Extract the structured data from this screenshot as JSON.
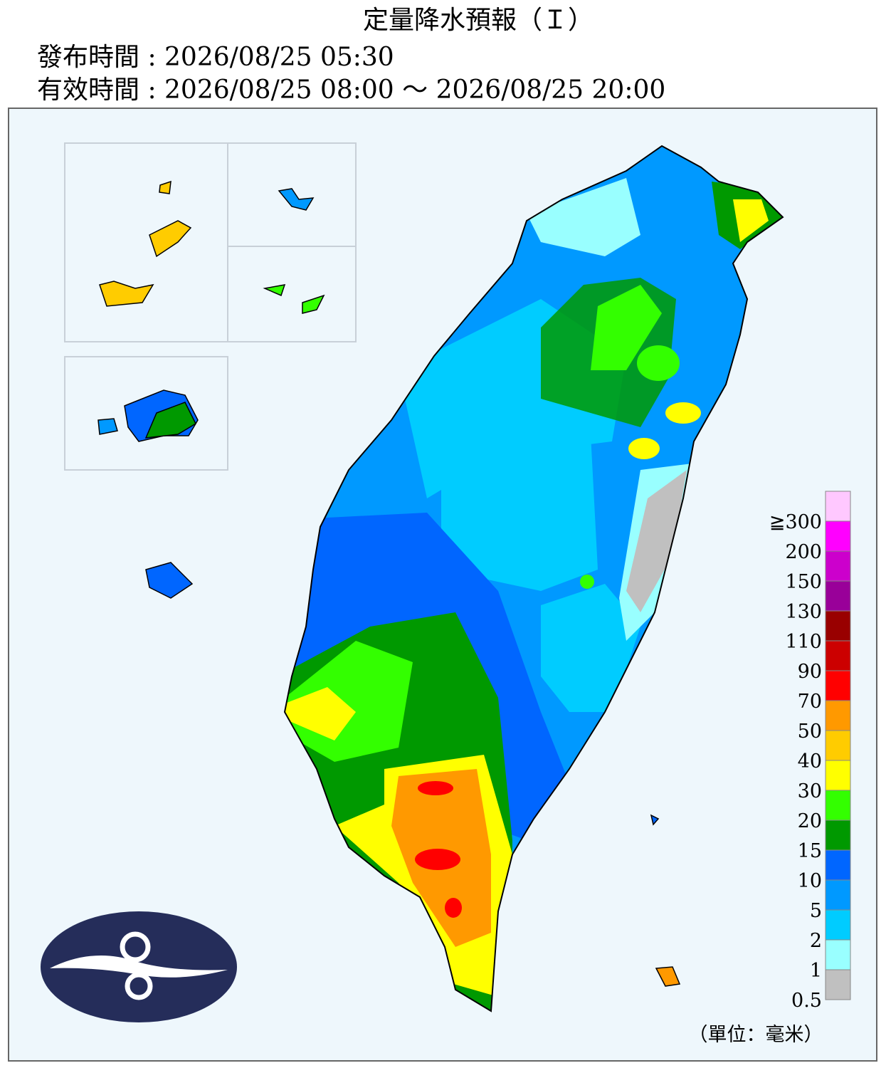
{
  "header": {
    "title": "定量降水預報（Ｉ）",
    "issued": "發布時間 : 2026/08/25 05:30",
    "valid": "有效時間 : 2026/08/25 08:00 ～ 2026/08/25 20:00"
  },
  "legend": {
    "items": [
      {
        "label": "≧300",
        "color": "#ffc8ff"
      },
      {
        "label": "200",
        "color": "#ff00ff"
      },
      {
        "label": "150",
        "color": "#cc00cc"
      },
      {
        "label": "130",
        "color": "#990099"
      },
      {
        "label": "110",
        "color": "#990000"
      },
      {
        "label": "90",
        "color": "#cc0000"
      },
      {
        "label": "70",
        "color": "#ff0000"
      },
      {
        "label": "50",
        "color": "#ff9900"
      },
      {
        "label": "40",
        "color": "#ffcc00"
      },
      {
        "label": "30",
        "color": "#ffff00"
      },
      {
        "label": "20",
        "color": "#33ff00"
      },
      {
        "label": "15",
        "color": "#009900"
      },
      {
        "label": "10",
        "color": "#0066ff"
      },
      {
        "label": "5",
        "color": "#0099ff"
      },
      {
        "label": "2",
        "color": "#00ccff"
      },
      {
        "label": "1",
        "color": "#99ffff"
      },
      {
        "label": "0.5",
        "color": "#c0c0c0"
      }
    ],
    "unit": "（單位：毫米）"
  }
}
